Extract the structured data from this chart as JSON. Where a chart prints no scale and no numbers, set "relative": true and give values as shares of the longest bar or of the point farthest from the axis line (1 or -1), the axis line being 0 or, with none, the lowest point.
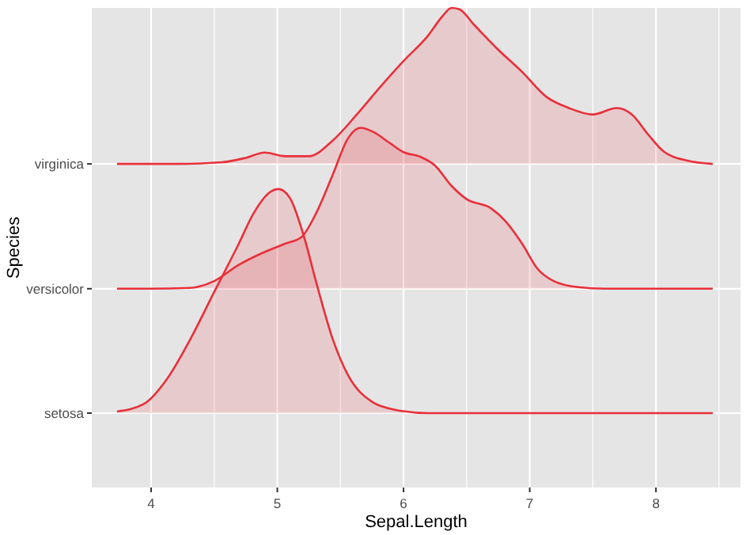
{
  "chart_data": {
    "type": "area",
    "relative": true,
    "xlabel": "Sepal.Length",
    "ylabel": "Species",
    "grid": true,
    "xlim": [
      3.53,
      8.67
    ],
    "xticks": [
      4,
      {
        "value": 4.5,
        "label": null
      },
      5,
      {
        "value": 5.5,
        "label": null
      },
      6,
      {
        "value": 6.5,
        "label": null
      },
      7,
      {
        "value": 7.5,
        "label": null
      },
      8,
      {
        "value": 8.5,
        "label": null
      }
    ],
    "series": [
      {
        "name": "setosa",
        "color": "#e8303a",
        "x": [
          3.73,
          3.94,
          4.13,
          4.31,
          4.5,
          4.69,
          4.81,
          4.94,
          5.01,
          5.1,
          5.21,
          5.31,
          5.44,
          5.56,
          5.75,
          5.94,
          6.19,
          6.5,
          7,
          7.5,
          8,
          8.45
        ],
        "values": [
          0.004,
          0.022,
          0.086,
          0.182,
          0.299,
          0.415,
          0.492,
          0.545,
          0.553,
          0.531,
          0.437,
          0.321,
          0.182,
          0.094,
          0.028,
          0.008,
          0,
          0,
          0,
          0,
          0,
          0
        ]
      },
      {
        "name": "versicolor",
        "color": "#e8303a",
        "x": [
          3.73,
          4,
          4.31,
          4.5,
          4.69,
          4.88,
          5.06,
          5.19,
          5.31,
          5.44,
          5.56,
          5.66,
          5.76,
          5.88,
          6,
          6.13,
          6.25,
          6.38,
          6.5,
          6.69,
          6.81,
          6.94,
          7.06,
          7.19,
          7.38,
          7.6,
          8,
          8.45
        ],
        "values": [
          0.307,
          0.307,
          0.309,
          0.326,
          0.365,
          0.395,
          0.418,
          0.434,
          0.495,
          0.589,
          0.678,
          0.704,
          0.694,
          0.669,
          0.644,
          0.633,
          0.611,
          0.561,
          0.528,
          0.506,
          0.473,
          0.418,
          0.357,
          0.326,
          0.311,
          0.307,
          0.307,
          0.307
        ]
      },
      {
        "name": "virginica",
        "color": "#e8303a",
        "x": [
          3.73,
          4.2,
          4.56,
          4.75,
          4.9,
          5.06,
          5.25,
          5.44,
          5.63,
          5.81,
          6,
          6.19,
          6.31,
          6.38,
          6.44,
          6.56,
          6.75,
          6.94,
          7.13,
          7.31,
          7.5,
          7.69,
          7.81,
          7.94,
          8.06,
          8.25,
          8.45
        ],
        "values": [
          0.615,
          0.615,
          0.619,
          0.63,
          0.643,
          0.634,
          0.634,
          0.673,
          0.737,
          0.803,
          0.869,
          0.93,
          0.98,
          1,
          0.997,
          0.958,
          0.897,
          0.842,
          0.781,
          0.753,
          0.737,
          0.753,
          0.737,
          0.687,
          0.646,
          0.623,
          0.615
        ]
      }
    ]
  }
}
